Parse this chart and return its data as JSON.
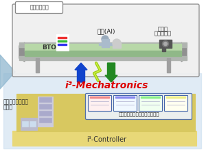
{
  "title": "i³-Mechatronics",
  "title_color": "#dd0000",
  "top_box_label": "基帹システム",
  "top_box_color": "#efefef",
  "top_box_border": "#888888",
  "conveyor_green": "#b8d8a8",
  "conveyor_green_dark": "#90b888",
  "conveyor_gray": "#a0a8a0",
  "conveyor_gray_light": "#c8ccc8",
  "label_bto": "BTO",
  "label_ai": "学習(AI)",
  "label_big1": "ビッグ",
  "label_big2": "データ解析",
  "arrow_up_color": "#1144cc",
  "arrow_down_color": "#228822",
  "lightning_color": "#99cc11",
  "left_text1": "つながるシステム",
  "left_text2": "の提供",
  "bottom_platform_color": "#e8d878",
  "bottom_platform_border": "#c8b848",
  "bottom_upper_color": "#d8c860",
  "bottom_box_label": "i³-Controller",
  "digital_label": "デジタルデータソリューション",
  "digital_box_color": "#eef4ff",
  "digital_box_border": "#4466aa",
  "small_cards_colors": [
    "#fff0f0",
    "#f0f8ff",
    "#f0fff0",
    "#fffff0"
  ],
  "bottom_bg_color": "#c8dcee",
  "left_triangle_color": "#90b8d0",
  "white": "#ffffff"
}
